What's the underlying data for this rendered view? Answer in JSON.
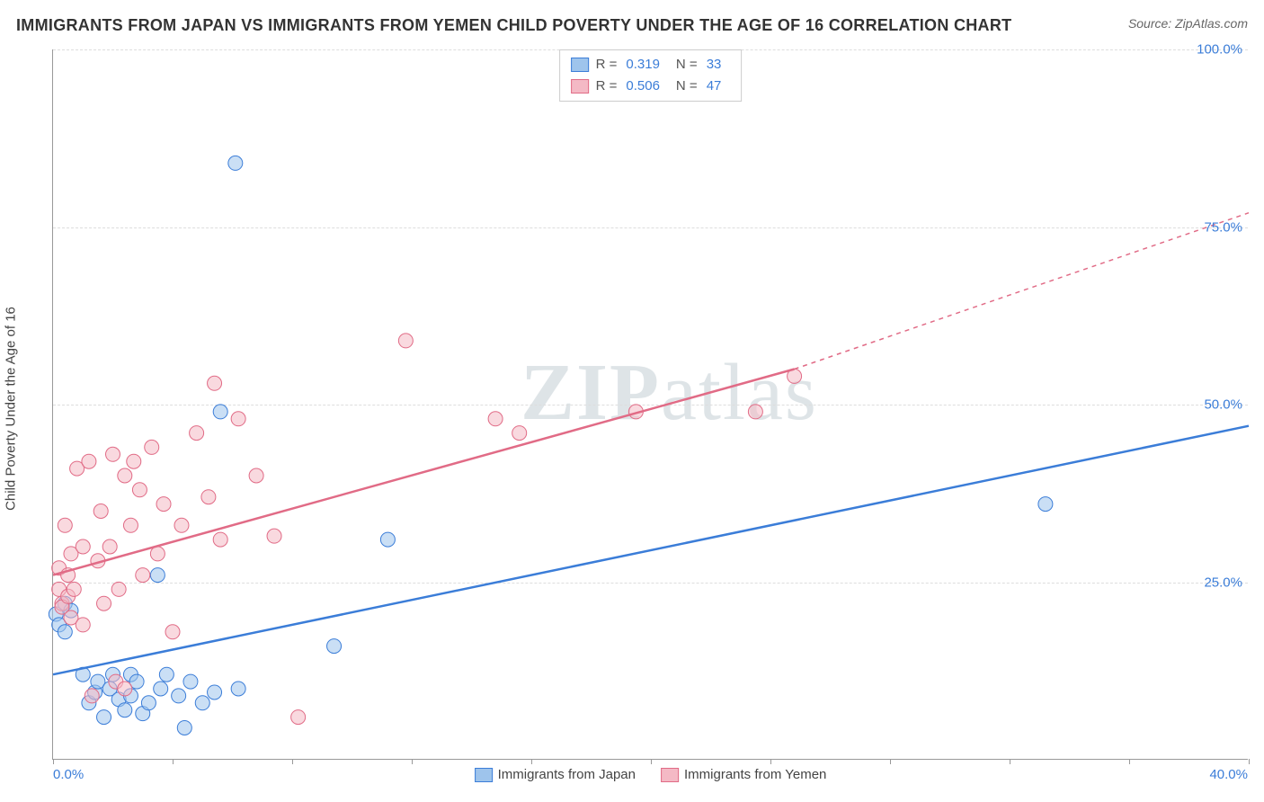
{
  "title": "IMMIGRANTS FROM JAPAN VS IMMIGRANTS FROM YEMEN CHILD POVERTY UNDER THE AGE OF 16 CORRELATION CHART",
  "source": "Source: ZipAtlas.com",
  "ylabel": "Child Poverty Under the Age of 16",
  "watermark": "ZIPatlas",
  "chart": {
    "type": "scatter",
    "background": "#ffffff",
    "grid_color": "#dddddd",
    "axis_color": "#999999",
    "tick_label_color": "#3b7dd8",
    "xlim": [
      0,
      40
    ],
    "ylim": [
      0,
      100
    ],
    "x_ticks": [
      0,
      4,
      8,
      12,
      16,
      20,
      24,
      28,
      32,
      36,
      40
    ],
    "x_tick_labels": {
      "left": "0.0%",
      "right": "40.0%"
    },
    "y_grid": [
      25,
      50,
      75,
      100
    ],
    "y_tick_labels": [
      "25.0%",
      "50.0%",
      "75.0%",
      "100.0%"
    ],
    "marker_radius": 8,
    "marker_opacity": 0.55,
    "line_width": 2.5,
    "series": [
      {
        "name": "Immigrants from Japan",
        "color_fill": "#9ec4ec",
        "color_stroke": "#3b7dd8",
        "r": "0.319",
        "n": "33",
        "points": [
          [
            0.1,
            20.5
          ],
          [
            0.2,
            19
          ],
          [
            0.4,
            22
          ],
          [
            0.4,
            18
          ],
          [
            0.6,
            21
          ],
          [
            1.0,
            12
          ],
          [
            1.2,
            8
          ],
          [
            1.4,
            9.5
          ],
          [
            1.5,
            11
          ],
          [
            1.7,
            6
          ],
          [
            1.9,
            10
          ],
          [
            2.0,
            12
          ],
          [
            2.2,
            8.5
          ],
          [
            2.4,
            7
          ],
          [
            2.6,
            12
          ],
          [
            2.6,
            9
          ],
          [
            2.8,
            11
          ],
          [
            3.0,
            6.5
          ],
          [
            3.2,
            8
          ],
          [
            3.5,
            26
          ],
          [
            3.6,
            10
          ],
          [
            3.8,
            12
          ],
          [
            4.2,
            9
          ],
          [
            4.4,
            4.5
          ],
          [
            4.6,
            11
          ],
          [
            5.0,
            8
          ],
          [
            5.4,
            9.5
          ],
          [
            5.6,
            49
          ],
          [
            6.1,
            84
          ],
          [
            6.2,
            10
          ],
          [
            9.4,
            16
          ],
          [
            11.2,
            31
          ],
          [
            33.2,
            36
          ]
        ],
        "regression": {
          "x1": 0,
          "y1": 12,
          "x2": 40,
          "y2": 47,
          "dash_from_x": 40
        }
      },
      {
        "name": "Immigrants from Yemen",
        "color_fill": "#f4b9c5",
        "color_stroke": "#e16b86",
        "r": "0.506",
        "n": "47",
        "points": [
          [
            0.2,
            27
          ],
          [
            0.2,
            24
          ],
          [
            0.3,
            22
          ],
          [
            0.3,
            21.5
          ],
          [
            0.4,
            33
          ],
          [
            0.5,
            26
          ],
          [
            0.5,
            23
          ],
          [
            0.6,
            20
          ],
          [
            0.6,
            29
          ],
          [
            0.7,
            24
          ],
          [
            0.8,
            41
          ],
          [
            1.0,
            30
          ],
          [
            1.0,
            19
          ],
          [
            1.2,
            42
          ],
          [
            1.3,
            9
          ],
          [
            1.5,
            28
          ],
          [
            1.6,
            35
          ],
          [
            1.7,
            22
          ],
          [
            1.9,
            30
          ],
          [
            2.0,
            43
          ],
          [
            2.1,
            11
          ],
          [
            2.2,
            24
          ],
          [
            2.4,
            40
          ],
          [
            2.4,
            10
          ],
          [
            2.6,
            33
          ],
          [
            2.7,
            42
          ],
          [
            2.9,
            38
          ],
          [
            3.0,
            26
          ],
          [
            3.3,
            44
          ],
          [
            3.5,
            29
          ],
          [
            3.7,
            36
          ],
          [
            4.0,
            18
          ],
          [
            4.3,
            33
          ],
          [
            4.8,
            46
          ],
          [
            5.2,
            37
          ],
          [
            5.4,
            53
          ],
          [
            5.6,
            31
          ],
          [
            6.2,
            48
          ],
          [
            6.8,
            40
          ],
          [
            7.4,
            31.5
          ],
          [
            8.2,
            6
          ],
          [
            11.8,
            59
          ],
          [
            14.8,
            48
          ],
          [
            15.6,
            46
          ],
          [
            19.5,
            49
          ],
          [
            23.5,
            49
          ],
          [
            24.8,
            54
          ]
        ],
        "regression": {
          "x1": 0,
          "y1": 26,
          "x2": 24.8,
          "y2": 55,
          "dash_from_x": 24.8,
          "dash_to": {
            "x": 40,
            "y": 77
          }
        }
      }
    ]
  },
  "legend_top_labels": {
    "R": "R =",
    "N": "N ="
  },
  "bottom_legend_labels": [
    "Immigrants from Japan",
    "Immigrants from Yemen"
  ]
}
